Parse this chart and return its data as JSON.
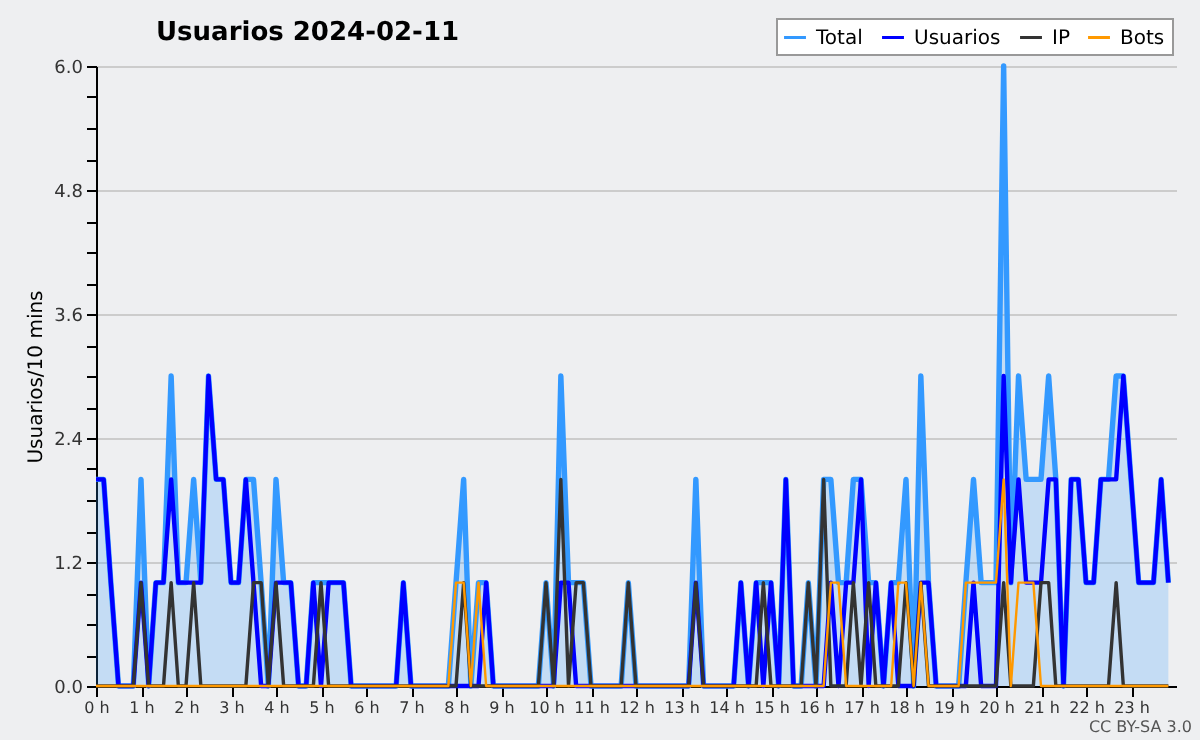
{
  "chart_data": {
    "type": "line",
    "title": "Usuarios  2024-02-11",
    "ylabel": "Usuarios/10 mins",
    "x": [
      0,
      0.17,
      0.33,
      0.5,
      0.67,
      0.83,
      1,
      1.17,
      1.33,
      1.5,
      1.67,
      1.83,
      2,
      2.17,
      2.33,
      2.5,
      2.67,
      2.83,
      3,
      3.17,
      3.33,
      3.5,
      3.67,
      3.83,
      4,
      4.17,
      4.33,
      4.5,
      4.67,
      4.83,
      5,
      5.17,
      5.33,
      5.5,
      5.67,
      5.83,
      6,
      6.17,
      6.33,
      6.5,
      6.67,
      6.83,
      7,
      7.17,
      7.33,
      7.5,
      7.67,
      7.83,
      8,
      8.17,
      8.33,
      8.5,
      8.67,
      8.83,
      9,
      9.17,
      9.33,
      9.5,
      9.67,
      9.83,
      10,
      10.17,
      10.33,
      10.5,
      10.67,
      10.83,
      11,
      11.17,
      11.33,
      11.5,
      11.67,
      11.83,
      12,
      12.17,
      12.33,
      12.5,
      12.67,
      12.83,
      13,
      13.17,
      13.33,
      13.5,
      13.67,
      13.83,
      14,
      14.17,
      14.33,
      14.5,
      14.67,
      14.83,
      15,
      15.17,
      15.33,
      15.5,
      15.67,
      15.83,
      16,
      16.17,
      16.33,
      16.5,
      16.67,
      16.83,
      17,
      17.17,
      17.33,
      17.5,
      17.67,
      17.83,
      18,
      18.17,
      18.33,
      18.5,
      18.67,
      18.83,
      19,
      19.17,
      19.33,
      19.5,
      19.67,
      19.83,
      20,
      20.17,
      20.33,
      20.5,
      20.67,
      20.83,
      21,
      21.17,
      21.33,
      21.5,
      21.67,
      21.83,
      22,
      22.17,
      22.33,
      22.5,
      22.67,
      22.83,
      23,
      23.17,
      23.33,
      23.5,
      23.67,
      23.83
    ],
    "series": [
      {
        "name": "Total",
        "type": "area",
        "color": "#3399ff",
        "values": [
          2,
          2,
          1,
          0,
          0,
          0,
          2,
          0,
          1,
          1,
          3,
          1,
          1,
          2,
          1,
          3,
          2,
          2,
          1,
          1,
          2,
          2,
          1,
          0,
          2,
          1,
          1,
          0,
          0,
          1,
          1,
          1,
          1,
          1,
          0,
          0,
          0,
          0,
          0,
          0,
          0,
          1,
          0,
          0,
          0,
          0,
          0,
          0,
          1,
          2,
          0,
          1,
          1,
          0,
          0,
          0,
          0,
          0,
          0,
          0,
          1,
          0,
          3,
          1,
          1,
          1,
          0,
          0,
          0,
          0,
          0,
          1,
          0,
          0,
          0,
          0,
          0,
          0,
          0,
          0,
          2,
          0,
          0,
          0,
          0,
          0,
          1,
          0,
          1,
          1,
          1,
          0,
          2,
          0,
          0,
          1,
          0,
          2,
          2,
          1,
          1,
          2,
          2,
          1,
          1,
          0,
          1,
          1,
          2,
          0,
          3,
          1,
          0,
          0,
          0,
          0,
          1,
          2,
          1,
          1,
          1,
          6,
          1,
          3,
          2,
          2,
          2,
          3,
          2,
          0,
          2,
          2,
          1,
          1,
          2,
          2,
          3,
          3,
          2,
          1,
          1,
          1,
          2,
          1
        ]
      },
      {
        "name": "Usuarios",
        "color": "#0000ff",
        "values": [
          2,
          2,
          1,
          0,
          0,
          0,
          1,
          0,
          1,
          1,
          2,
          1,
          1,
          1,
          1,
          3,
          2,
          2,
          1,
          1,
          2,
          1,
          0,
          0,
          1,
          1,
          1,
          0,
          0,
          1,
          0,
          1,
          1,
          1,
          0,
          0,
          0,
          0,
          0,
          0,
          0,
          1,
          0,
          0,
          0,
          0,
          0,
          0,
          0,
          0,
          0,
          0,
          1,
          0,
          0,
          0,
          0,
          0,
          0,
          0,
          0,
          0,
          1,
          1,
          0,
          0,
          0,
          0,
          0,
          0,
          0,
          0,
          0,
          0,
          0,
          0,
          0,
          0,
          0,
          0,
          1,
          0,
          0,
          0,
          0,
          0,
          1,
          0,
          1,
          0,
          1,
          0,
          2,
          0,
          0,
          0,
          0,
          0,
          1,
          0,
          1,
          1,
          2,
          0,
          1,
          0,
          1,
          0,
          0,
          0,
          1,
          1,
          0,
          0,
          0,
          0,
          0,
          1,
          0,
          0,
          0,
          3,
          1,
          2,
          1,
          1,
          1,
          2,
          2,
          0,
          2,
          2,
          1,
          1,
          2,
          2,
          2,
          3,
          2,
          1,
          1,
          1,
          2,
          1
        ]
      },
      {
        "name": "IP",
        "color": "#333333",
        "values": [
          0,
          0,
          0,
          0,
          0,
          0,
          1,
          0,
          0,
          0,
          1,
          0,
          0,
          1,
          0,
          0,
          0,
          0,
          0,
          0,
          0,
          1,
          1,
          0,
          1,
          0,
          0,
          0,
          0,
          0,
          1,
          0,
          0,
          0,
          0,
          0,
          0,
          0,
          0,
          0,
          0,
          0,
          0,
          0,
          0,
          0,
          0,
          0,
          0,
          1,
          0,
          0,
          0,
          0,
          0,
          0,
          0,
          0,
          0,
          0,
          1,
          0,
          2,
          0,
          1,
          1,
          0,
          0,
          0,
          0,
          0,
          1,
          0,
          0,
          0,
          0,
          0,
          0,
          0,
          0,
          1,
          0,
          0,
          0,
          0,
          0,
          0,
          0,
          0,
          1,
          0,
          0,
          0,
          0,
          0,
          1,
          0,
          2,
          0,
          0,
          0,
          1,
          0,
          1,
          0,
          0,
          0,
          0,
          1,
          0,
          1,
          0,
          0,
          0,
          0,
          0,
          0,
          0,
          0,
          0,
          0,
          1,
          0,
          0,
          0,
          0,
          1,
          1,
          0,
          0,
          0,
          0,
          0,
          0,
          0,
          0,
          1,
          0,
          0,
          0,
          0,
          0,
          0,
          0
        ]
      },
      {
        "name": "Bots",
        "color": "#ff9900",
        "values": [
          0,
          0,
          0,
          0,
          0,
          0,
          0,
          0,
          0,
          0,
          0,
          0,
          0,
          0,
          0,
          0,
          0,
          0,
          0,
          0,
          0,
          0,
          0,
          0,
          0,
          0,
          0,
          0,
          0,
          0,
          0,
          0,
          0,
          0,
          0,
          0,
          0,
          0,
          0,
          0,
          0,
          0,
          0,
          0,
          0,
          0,
          0,
          0,
          1,
          1,
          0,
          1,
          0,
          0,
          0,
          0,
          0,
          0,
          0,
          0,
          0,
          0,
          0,
          0,
          0,
          0,
          0,
          0,
          0,
          0,
          0,
          0,
          0,
          0,
          0,
          0,
          0,
          0,
          0,
          0,
          0,
          0,
          0,
          0,
          0,
          0,
          0,
          0,
          0,
          0,
          0,
          0,
          0,
          0,
          0,
          0,
          0,
          0,
          1,
          1,
          0,
          0,
          0,
          0,
          0,
          0,
          0,
          1,
          1,
          0,
          1,
          0,
          0,
          0,
          0,
          0,
          1,
          1,
          1,
          1,
          1,
          2,
          0,
          1,
          1,
          1,
          0,
          0,
          0,
          0,
          0,
          0,
          0,
          0,
          0,
          0,
          0,
          0,
          0,
          0,
          0,
          0,
          0,
          0
        ]
      }
    ],
    "xlim": [
      0,
      24
    ],
    "xticks": [
      {
        "value": 0,
        "label": "0 h"
      },
      {
        "value": 1,
        "label": "1 h"
      },
      {
        "value": 2,
        "label": "2 h"
      },
      {
        "value": 3,
        "label": "3 h"
      },
      {
        "value": 4,
        "label": "4 h"
      },
      {
        "value": 5,
        "label": "5 h"
      },
      {
        "value": 6,
        "label": "6 h"
      },
      {
        "value": 7,
        "label": "7 h"
      },
      {
        "value": 8,
        "label": "8 h"
      },
      {
        "value": 9,
        "label": "9 h"
      },
      {
        "value": 10,
        "label": "10 h"
      },
      {
        "value": 11,
        "label": "11 h"
      },
      {
        "value": 12,
        "label": "12 h"
      },
      {
        "value": 13,
        "label": "13 h"
      },
      {
        "value": 14,
        "label": "14 h"
      },
      {
        "value": 15,
        "label": "15 h"
      },
      {
        "value": 16,
        "label": "16 h"
      },
      {
        "value": 17,
        "label": "17 h"
      },
      {
        "value": 18,
        "label": "18 h"
      },
      {
        "value": 19,
        "label": "19 h"
      },
      {
        "value": 20,
        "label": "20 h"
      },
      {
        "value": 21,
        "label": "21 h"
      },
      {
        "value": 22,
        "label": "22 h"
      },
      {
        "value": 23,
        "label": "23 h"
      }
    ],
    "ylim": [
      0,
      6
    ],
    "yticks": [
      {
        "value": 0,
        "label": "0.0"
      },
      {
        "value": 0.3,
        "label": null
      },
      {
        "value": 0.6,
        "label": null
      },
      {
        "value": 0.9,
        "label": null
      },
      {
        "value": 1.2,
        "label": "1.2"
      },
      {
        "value": 1.5,
        "label": null
      },
      {
        "value": 1.8,
        "label": null
      },
      {
        "value": 2.1,
        "label": null
      },
      {
        "value": 2.4,
        "label": "2.4"
      },
      {
        "value": 2.7,
        "label": null
      },
      {
        "value": 3.0,
        "label": null
      },
      {
        "value": 3.3,
        "label": null
      },
      {
        "value": 3.6,
        "label": "3.6"
      },
      {
        "value": 3.9,
        "label": null
      },
      {
        "value": 4.2,
        "label": null
      },
      {
        "value": 4.5,
        "label": null
      },
      {
        "value": 4.8,
        "label": "4.8"
      },
      {
        "value": 5.1,
        "label": null
      },
      {
        "value": 5.4,
        "label": null
      },
      {
        "value": 5.7,
        "label": null
      },
      {
        "value": 6,
        "label": "6.0"
      }
    ],
    "grid": "y",
    "legend": "top right",
    "annotations": [
      "CC BY-SA 3.0"
    ]
  }
}
